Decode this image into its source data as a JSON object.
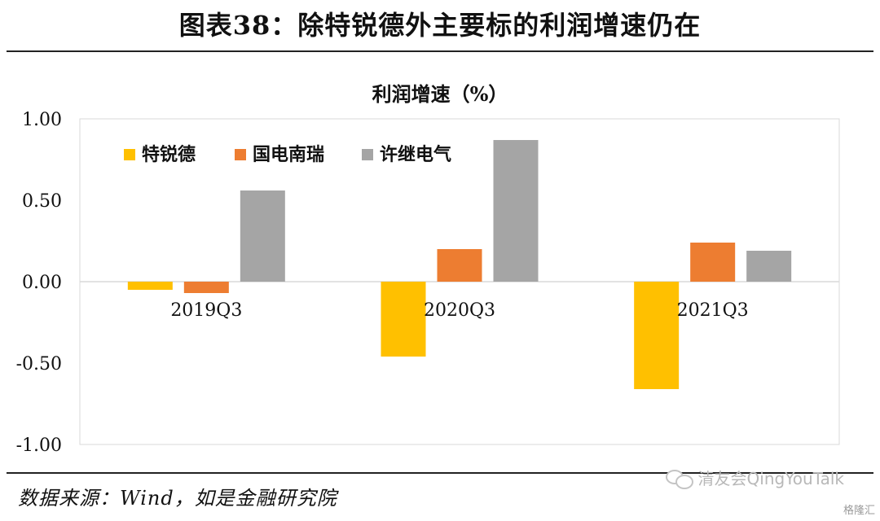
{
  "figure_title": "图表38：除特锐德外主要标的利润增速仍在",
  "source_text": "数据来源：Wind，如是金融研究院",
  "watermark_text": "清友会QingYouTalk",
  "corner_logo_text": "格隆汇",
  "chart_data": {
    "type": "bar",
    "title": "利润增速（%）",
    "xlabel": "",
    "ylabel": "",
    "categories": [
      "2019Q3",
      "2020Q3",
      "2021Q3"
    ],
    "series": [
      {
        "name": "特锐德",
        "color": "#FFC000",
        "values": [
          -0.05,
          -0.46,
          -0.66
        ]
      },
      {
        "name": "国电南瑞",
        "color": "#ED7D31",
        "values": [
          -0.07,
          0.2,
          0.24
        ]
      },
      {
        "name": "许继电气",
        "color": "#A5A5A5",
        "values": [
          0.56,
          0.87,
          0.19
        ]
      }
    ],
    "ylim": [
      -1.0,
      1.0
    ],
    "yticks": [
      1.0,
      0.5,
      0.0,
      -0.5,
      -1.0
    ],
    "ytick_labels": [
      "1.00",
      "0.50",
      "0.00",
      "-0.50",
      "-1.00"
    ],
    "grid": false,
    "legend_position": "top-left"
  }
}
